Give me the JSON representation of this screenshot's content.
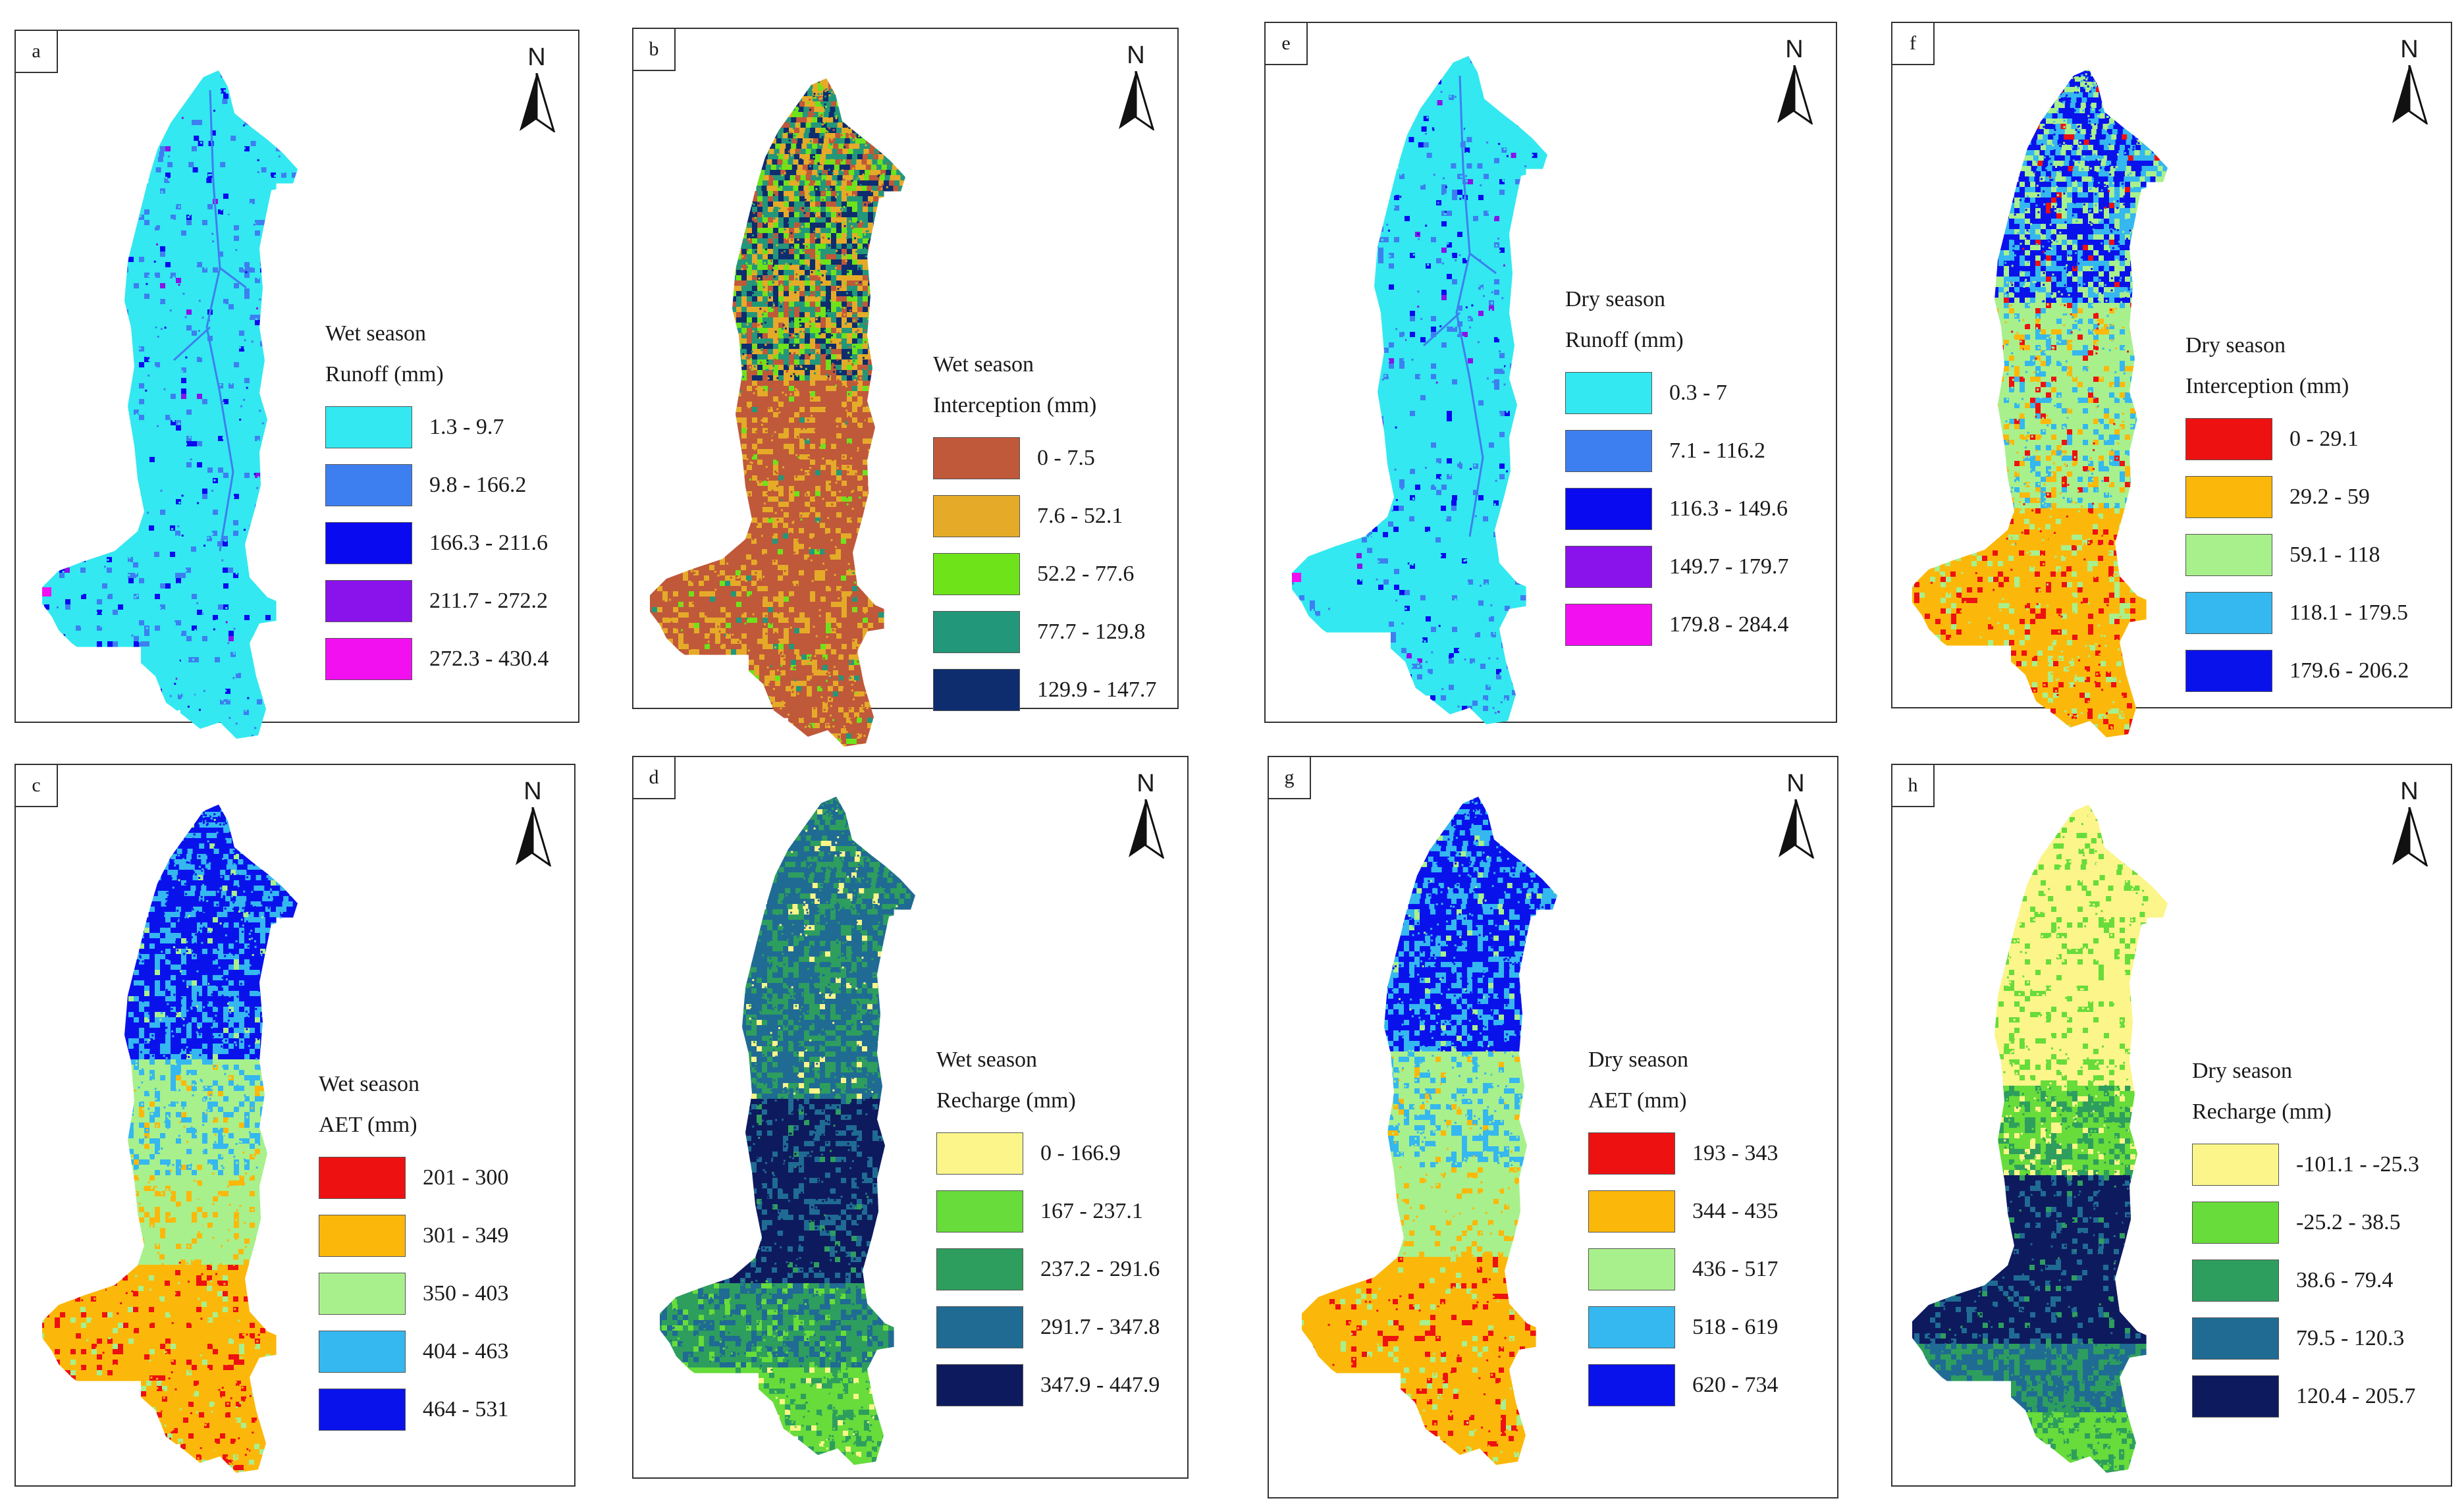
{
  "north_label": "N",
  "panels": [
    {
      "letter": "a",
      "season": "Wet season",
      "variable": "Runoff (mm)",
      "classes": [
        {
          "range": "1.3 - 9.7",
          "color": "#33e8f0"
        },
        {
          "range": "9.8 - 166.2",
          "color": "#3d7ff0"
        },
        {
          "range": "166.3 - 211.6",
          "color": "#0a0af0"
        },
        {
          "range": "211.7 - 272.2",
          "color": "#8a12ea"
        },
        {
          "range": "272.3 - 430.4",
          "color": "#f20ff0"
        }
      ],
      "pattern": "runoff"
    },
    {
      "letter": "b",
      "season": "Wet season",
      "variable": "Interception (mm)",
      "classes": [
        {
          "range": "0 - 7.5",
          "color": "#c0583a"
        },
        {
          "range": "7.6 - 52.1",
          "color": "#e5ab28"
        },
        {
          "range": "52.2 - 77.6",
          "color": "#6fe31a"
        },
        {
          "range": "77.7 - 129.8",
          "color": "#23977a"
        },
        {
          "range": "129.9 - 147.7",
          "color": "#0e2d6e"
        }
      ],
      "pattern": "interception_wet"
    },
    {
      "letter": "e",
      "season": "Dry season",
      "variable": "Runoff (mm)",
      "classes": [
        {
          "range": "0.3 - 7",
          "color": "#33e8f0"
        },
        {
          "range": "7.1 - 116.2",
          "color": "#3d7ff0"
        },
        {
          "range": "116.3 - 149.6",
          "color": "#0a0af0"
        },
        {
          "range": "149.7 - 179.7",
          "color": "#8a12ea"
        },
        {
          "range": "179.8 - 284.4",
          "color": "#f20ff0"
        }
      ],
      "pattern": "runoff"
    },
    {
      "letter": "f",
      "season": "Dry season",
      "variable": "Interception (mm)",
      "classes": [
        {
          "range": "0 - 29.1",
          "color": "#ee1111"
        },
        {
          "range": "29.2 - 59",
          "color": "#fbb80a"
        },
        {
          "range": "59.1 - 118",
          "color": "#a8f08c"
        },
        {
          "range": "118.1 - 179.5",
          "color": "#35b7ef"
        },
        {
          "range": "179.6 - 206.2",
          "color": "#0a12ec"
        }
      ],
      "pattern": "interception_dry"
    },
    {
      "letter": "c",
      "season": "Wet season",
      "variable": "AET (mm)",
      "classes": [
        {
          "range": "201 - 300",
          "color": "#ee1111"
        },
        {
          "range": "301 - 349",
          "color": "#fbb80a"
        },
        {
          "range": "350 - 403",
          "color": "#a8f08c"
        },
        {
          "range": "404 - 463",
          "color": "#35b7ef"
        },
        {
          "range": "464 - 531",
          "color": "#0a12ec"
        }
      ],
      "pattern": "aet"
    },
    {
      "letter": "d",
      "season": "Wet season",
      "variable": "Recharge (mm)",
      "classes": [
        {
          "range": "0 - 166.9",
          "color": "#fbf58a"
        },
        {
          "range": "167 - 237.1",
          "color": "#67dc3a"
        },
        {
          "range": "237.2 - 291.6",
          "color": "#2e9e5e"
        },
        {
          "range": "291.7 - 347.8",
          "color": "#1f6b93"
        },
        {
          "range": "347.9 - 447.9",
          "color": "#0e1a5e"
        }
      ],
      "pattern": "recharge_wet"
    },
    {
      "letter": "g",
      "season": "Dry season",
      "variable": "AET (mm)",
      "classes": [
        {
          "range": "193 - 343",
          "color": "#ee1111"
        },
        {
          "range": "344 - 435",
          "color": "#fbb80a"
        },
        {
          "range": "436 - 517",
          "color": "#a8f08c"
        },
        {
          "range": "518 - 619",
          "color": "#35b7ef"
        },
        {
          "range": "620 - 734",
          "color": "#0a12ec"
        }
      ],
      "pattern": "aet"
    },
    {
      "letter": "h",
      "season": "Dry season",
      "variable": "Recharge (mm)",
      "classes": [
        {
          "range": "-101.1 - -25.3",
          "color": "#fbf58a"
        },
        {
          "range": "-25.2 - 38.5",
          "color": "#67dc3a"
        },
        {
          "range": "38.6 - 79.4",
          "color": "#2e9e5e"
        },
        {
          "range": "79.5 - 120.3",
          "color": "#1f6b93"
        },
        {
          "range": "120.4 - 205.7",
          "color": "#0e1a5e"
        }
      ],
      "pattern": "recharge_dry"
    }
  ]
}
